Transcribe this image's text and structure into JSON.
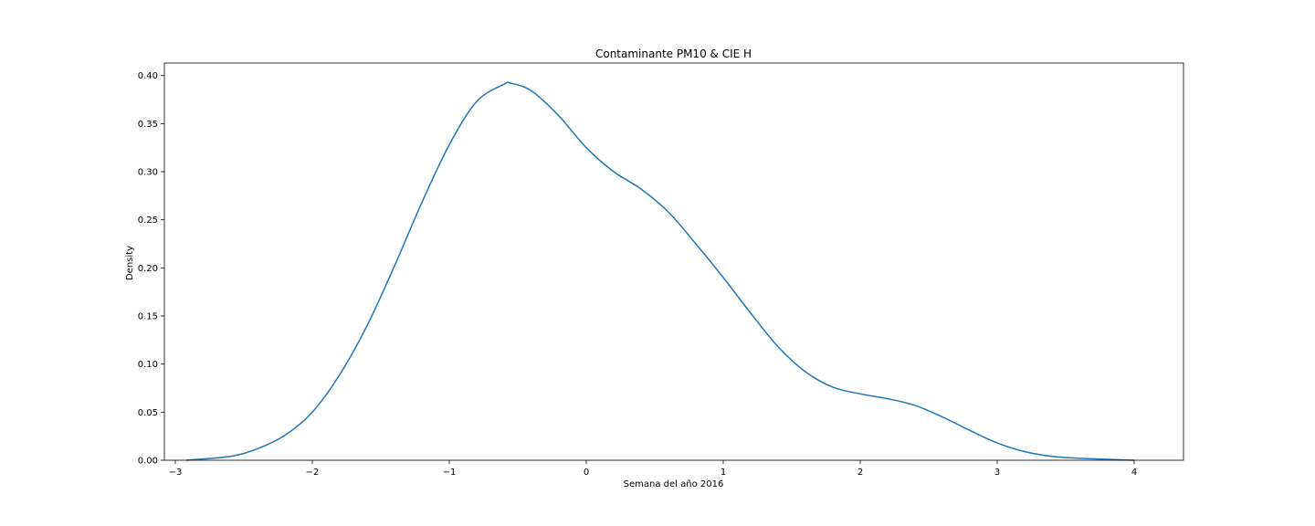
{
  "chart_data": {
    "type": "line",
    "title": "Contaminante PM10 & CIE H",
    "xlabel": "Semana del año 2016",
    "ylabel": "Density",
    "xlim": [
      -3.08,
      4.36
    ],
    "ylim": [
      0,
      0.413
    ],
    "xticks": [
      -3,
      -2,
      -1,
      0,
      1,
      2,
      3,
      4
    ],
    "xtick_labels": [
      "−3",
      "−2",
      "−1",
      "0",
      "1",
      "2",
      "3",
      "4"
    ],
    "yticks": [
      0,
      0.05,
      0.1,
      0.15,
      0.2,
      0.25,
      0.3,
      0.35,
      0.4
    ],
    "ytick_labels": [
      "0.00",
      "0.05",
      "0.10",
      "0.15",
      "0.20",
      "0.25",
      "0.30",
      "0.35",
      "0.40"
    ],
    "grid": false,
    "colors": {
      "line": "#1f77b4"
    },
    "series": [
      {
        "x": [
          -2.92,
          -2.6,
          -2.4,
          -2.2,
          -2.0,
          -1.8,
          -1.6,
          -1.4,
          -1.2,
          -1.0,
          -0.8,
          -0.6,
          -0.55,
          -0.4,
          -0.2,
          0.0,
          0.2,
          0.4,
          0.6,
          0.8,
          1.0,
          1.2,
          1.4,
          1.6,
          1.8,
          2.0,
          2.2,
          2.4,
          2.6,
          2.8,
          3.0,
          3.2,
          3.4,
          3.6,
          3.8,
          4.0
        ],
        "y": [
          0.0,
          0.004,
          0.012,
          0.026,
          0.05,
          0.089,
          0.14,
          0.202,
          0.268,
          0.328,
          0.373,
          0.391,
          0.392,
          0.384,
          0.358,
          0.325,
          0.3,
          0.282,
          0.258,
          0.225,
          0.19,
          0.153,
          0.118,
          0.092,
          0.076,
          0.069,
          0.064,
          0.057,
          0.045,
          0.031,
          0.018,
          0.009,
          0.004,
          0.002,
          0.001,
          0.0
        ]
      }
    ]
  }
}
